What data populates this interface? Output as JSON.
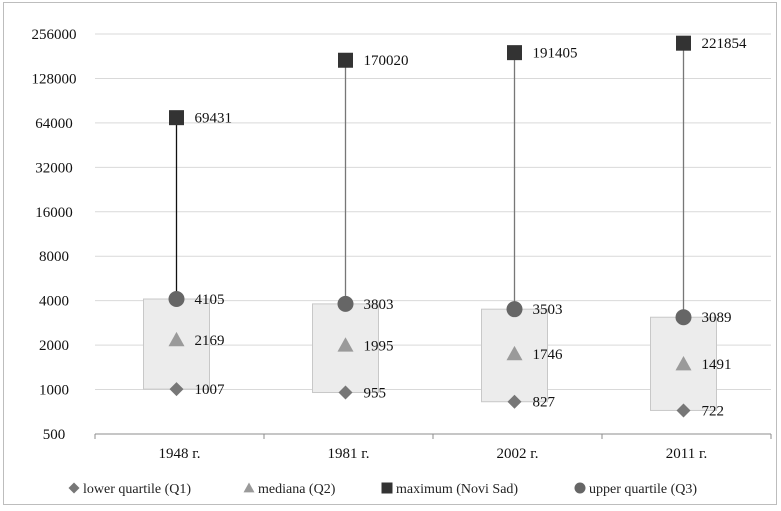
{
  "chart_data": {
    "type": "box",
    "categories": [
      "1948 г.",
      "1981 г.",
      "2002 г.",
      "2011 г."
    ],
    "yscale": "log2",
    "ylim": [
      500,
      256000
    ],
    "yticks": [
      "256000",
      "128000",
      "64000",
      "32000",
      "16000",
      "8000",
      "4000",
      "2000",
      "1000",
      "500"
    ],
    "grid": true,
    "legend_position": "bottom",
    "series": [
      {
        "name": "lower quartile (Q1)",
        "marker": "diamond",
        "color": "#777777",
        "values": [
          1007,
          955,
          827,
          722
        ]
      },
      {
        "name": "mediana (Q2)",
        "marker": "triangle",
        "color": "#9a9a9a",
        "values": [
          2169,
          1995,
          1746,
          1491
        ]
      },
      {
        "name": "maximum (Novi Sad)",
        "marker": "square",
        "color": "#333333",
        "values": [
          69431,
          170020,
          191405,
          221854
        ]
      },
      {
        "name": "upper quartile (Q3)",
        "marker": "circle",
        "color": "#666666",
        "values": [
          4105,
          3803,
          3503,
          3089
        ]
      }
    ],
    "labels": {
      "q1": [
        "1007",
        "955",
        "827",
        "722"
      ],
      "q2": [
        "2169",
        "1995",
        "1746",
        "1491"
      ],
      "max": [
        "69431",
        "170020",
        "191405",
        "221854"
      ],
      "q3": [
        "4105",
        "3803",
        "3503",
        "3089"
      ]
    }
  }
}
